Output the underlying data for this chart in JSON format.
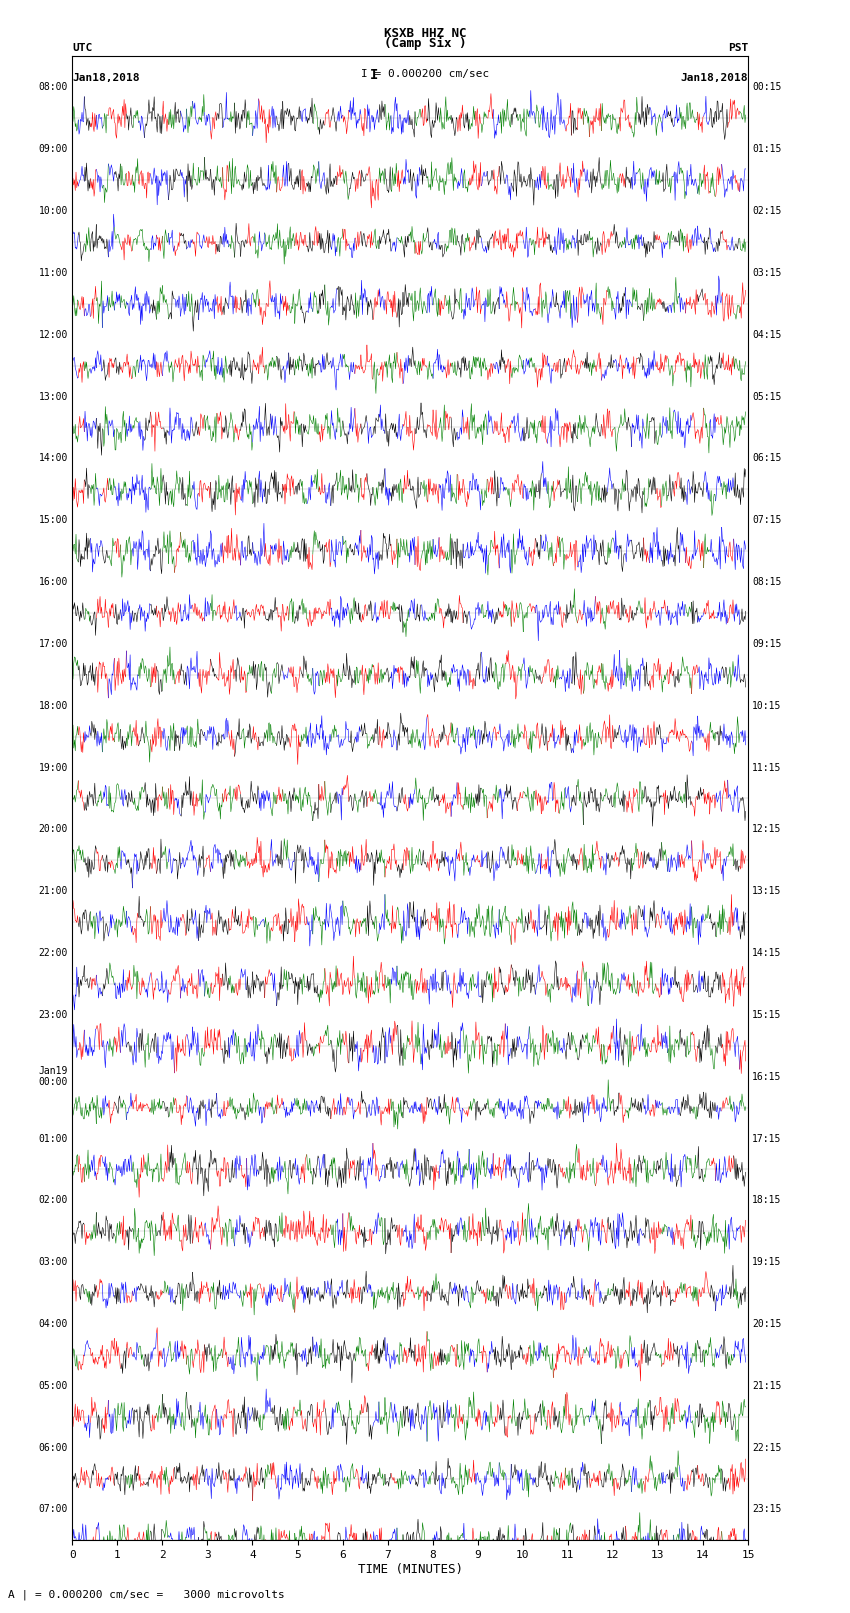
{
  "title_line1": "KSXB HHZ NC",
  "title_line2": "(Camp Six )",
  "scale_label": "I = 0.000200 cm/sec",
  "bottom_label": "A | = 0.000200 cm/sec =   3000 microvolts",
  "xlabel": "TIME (MINUTES)",
  "left_header": "UTC",
  "right_header": "PST",
  "left_date": "Jan18,2018",
  "right_date": "Jan18,2018",
  "utc_times": [
    "08:00",
    "09:00",
    "10:00",
    "11:00",
    "12:00",
    "13:00",
    "14:00",
    "15:00",
    "16:00",
    "17:00",
    "18:00",
    "19:00",
    "20:00",
    "21:00",
    "22:00",
    "23:00",
    "Jan19\n00:00",
    "01:00",
    "02:00",
    "03:00",
    "04:00",
    "05:00",
    "06:00",
    "07:00"
  ],
  "pst_times": [
    "00:15",
    "01:15",
    "02:15",
    "03:15",
    "04:15",
    "05:15",
    "06:15",
    "07:15",
    "08:15",
    "09:15",
    "10:15",
    "11:15",
    "12:15",
    "13:15",
    "14:15",
    "15:15",
    "16:15",
    "17:15",
    "18:15",
    "19:15",
    "20:15",
    "21:15",
    "22:15",
    "23:15"
  ],
  "n_rows": 24,
  "n_cols": 900,
  "x_min": 0,
  "x_max": 15,
  "x_ticks": [
    0,
    1,
    2,
    3,
    4,
    5,
    6,
    7,
    8,
    9,
    10,
    11,
    12,
    13,
    14,
    15
  ],
  "colors": [
    "red",
    "blue",
    "green",
    "black"
  ],
  "bg_color": "white",
  "amplitude": 0.45,
  "seed": 42
}
